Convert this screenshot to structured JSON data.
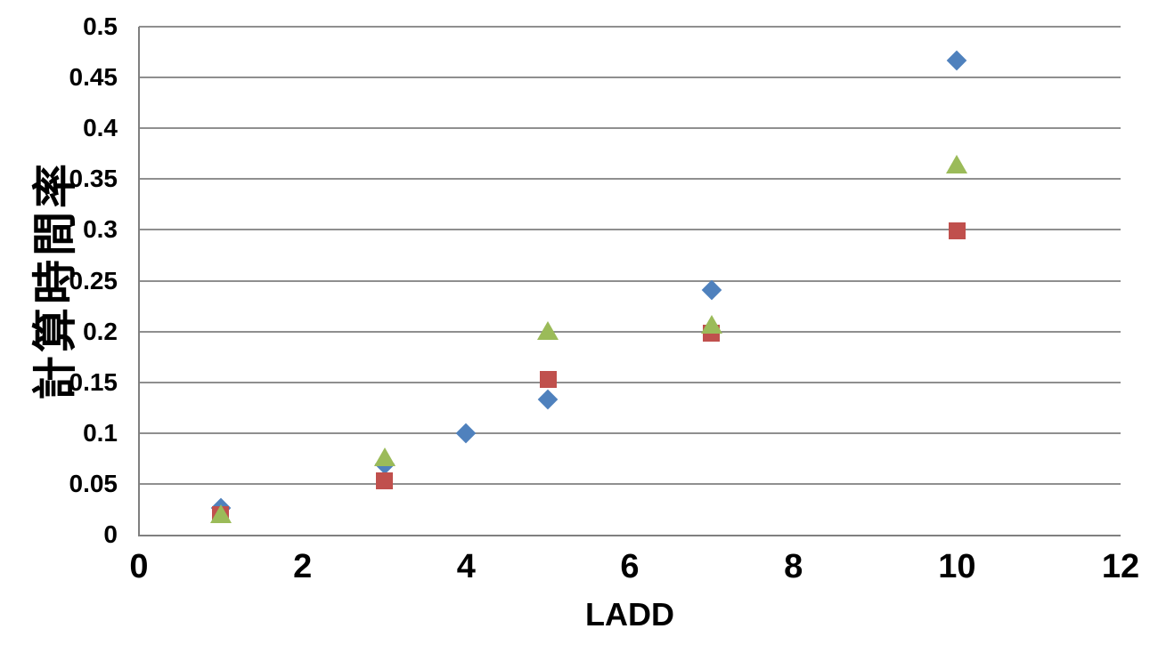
{
  "chart_data": {
    "type": "scatter",
    "title": "",
    "xlabel": "LADD",
    "ylabel": "計算時間率",
    "xlim": [
      0,
      12
    ],
    "ylim": [
      0,
      0.5
    ],
    "x_ticks": [
      0,
      2,
      4,
      6,
      8,
      10,
      12
    ],
    "y_ticks": [
      0,
      0.05,
      0.1,
      0.15,
      0.2,
      0.25,
      0.3,
      0.35,
      0.4,
      0.45,
      0.5
    ],
    "grid": "horizontal-only",
    "legend": "none",
    "series": [
      {
        "name": "blue-diamond-series",
        "marker": "diamond",
        "color": "#4F81BD",
        "points": [
          [
            1,
            0.026
          ],
          [
            3,
            0.069
          ],
          [
            4,
            0.1
          ],
          [
            5,
            0.133
          ],
          [
            7,
            0.241
          ],
          [
            10,
            0.467
          ]
        ]
      },
      {
        "name": "red-square-series",
        "marker": "square",
        "color": "#C0504D",
        "points": [
          [
            1,
            0.02
          ],
          [
            3,
            0.053
          ],
          [
            5,
            0.153
          ],
          [
            7,
            0.198
          ],
          [
            10,
            0.299
          ]
        ]
      },
      {
        "name": "green-triangle-series",
        "marker": "triangle",
        "color": "#9BBB59",
        "points": [
          [
            1,
            0.021
          ],
          [
            3,
            0.077
          ],
          [
            5,
            0.201
          ],
          [
            7,
            0.207
          ],
          [
            10,
            0.365
          ]
        ]
      }
    ]
  },
  "colors": {
    "background": "#ffffff",
    "gridline": "#8f8f8f",
    "axis_line": "#7f7f7f",
    "text": "#000000"
  }
}
